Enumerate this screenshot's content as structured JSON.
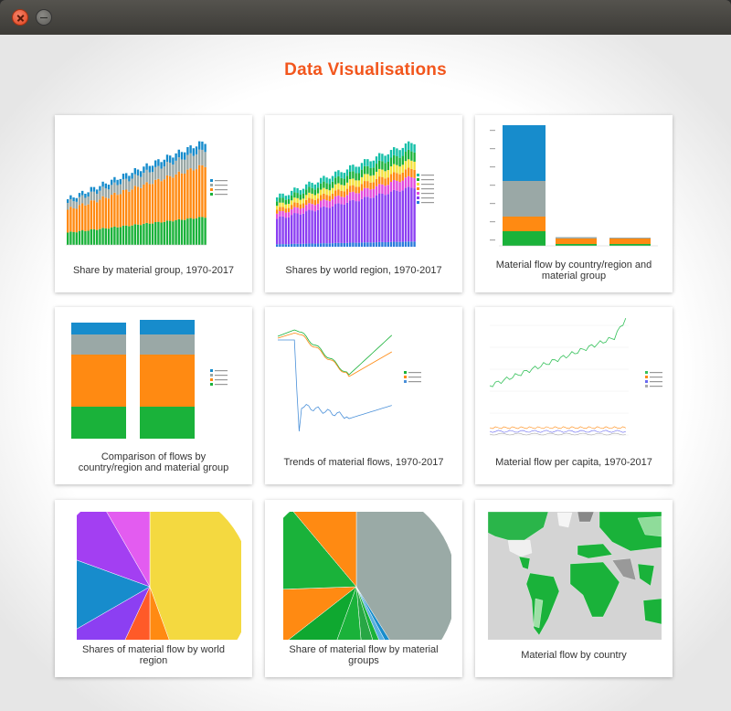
{
  "header": {
    "title": "Data Visualisations"
  },
  "cards": [
    {
      "caption": "Share by material group, 1970-2017"
    },
    {
      "caption": "Shares by world region, 1970-2017"
    },
    {
      "caption": "Material flow by country/region and material group"
    },
    {
      "caption": "Comparison of flows by country/region and material group"
    },
    {
      "caption": "Trends of material flows, 1970-2017"
    },
    {
      "caption": "Material flow per capita, 1970-2017"
    },
    {
      "caption": "Shares of material flow by world region"
    },
    {
      "caption": "Share of material flow by material groups"
    },
    {
      "caption": "Material flow by country"
    }
  ]
}
